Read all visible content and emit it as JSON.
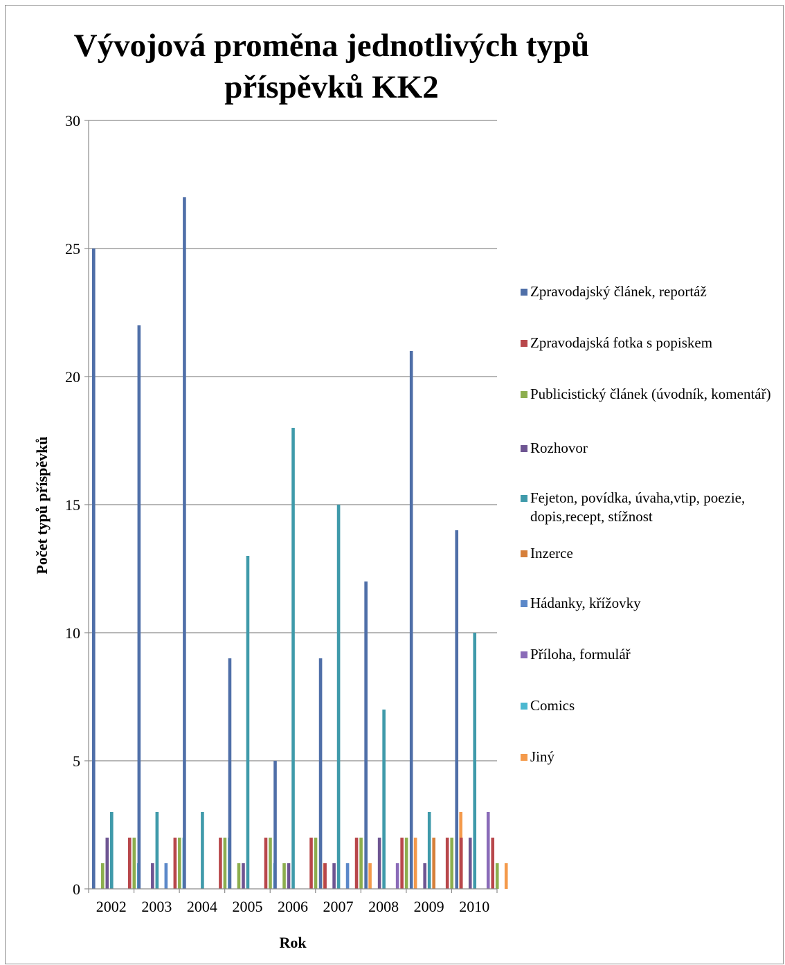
{
  "chart_data": {
    "type": "bar",
    "title": [
      "Vývojová proměna jednotlivých typů",
      "příspěvků KK2"
    ],
    "xlabel": "Rok",
    "ylabel": "Počet typů příspěvků",
    "ylim": [
      0,
      30
    ],
    "yticks": [
      0,
      5,
      10,
      15,
      20,
      25,
      30
    ],
    "grid": true,
    "legend_position": "right",
    "categories": [
      "2002",
      "2003",
      "2004",
      "2005",
      "2006",
      "2007",
      "2008",
      "2009",
      "2010"
    ],
    "series": [
      {
        "name": "Zpravodajský článek, reportáž",
        "color": "#4F6FA8",
        "values": [
          25,
          22,
          27,
          9,
          5,
          9,
          12,
          21,
          14
        ]
      },
      {
        "name": "Zpravodajská fotka s popiskem",
        "color": "#B8474B",
        "values": [
          0,
          0,
          0,
          0,
          0,
          1,
          0,
          0,
          2
        ]
      },
      {
        "name": "Publicistický článek (úvodník, komentář)",
        "color": "#8CAE4E",
        "values": [
          1,
          0,
          0,
          1,
          1,
          0,
          0,
          0,
          0
        ]
      },
      {
        "name": "Rozhovor",
        "color": "#6E5592",
        "values": [
          2,
          1,
          0,
          1,
          1,
          1,
          2,
          1,
          2
        ]
      },
      {
        "name": "Fejeton, povídka, úvaha,vtip, poezie, dopis,recept, stížnost",
        "color": "#3F9AAA",
        "values": [
          3,
          3,
          3,
          13,
          18,
          15,
          7,
          3,
          10
        ]
      },
      {
        "name": "Inzerce",
        "color": "#D67F3A",
        "values": [
          0,
          0,
          0,
          0,
          0,
          0,
          0,
          2,
          0
        ]
      },
      {
        "name": "Hádanky, křížovky",
        "color": "#5B88C9",
        "values": [
          0,
          1,
          0,
          0,
          0,
          1,
          0,
          0,
          0
        ]
      },
      {
        "name": "Příloha, formulář",
        "color": "#8A6BB8",
        "values": [
          0,
          0,
          0,
          0,
          0,
          0,
          1,
          0,
          3
        ]
      },
      {
        "name": "Comics",
        "color": "#4BB8D0",
        "values": [
          0,
          0,
          0,
          0,
          0,
          0,
          0,
          0,
          0
        ]
      },
      {
        "name": "Jiný",
        "color": "#F49A4B",
        "values": [
          0,
          0,
          0,
          0,
          1,
          1,
          2,
          3,
          1
        ]
      }
    ],
    "extra_bars": {
      "zpravodajska_fotka_2": [
        2,
        2,
        2,
        2,
        2,
        2,
        2,
        2,
        2
      ],
      "publicisticky_2": [
        2,
        2,
        2,
        2,
        2,
        2,
        2,
        2,
        1
      ],
      "comics_2": [
        1,
        2,
        2,
        1,
        0,
        0,
        0,
        0,
        0
      ]
    }
  }
}
